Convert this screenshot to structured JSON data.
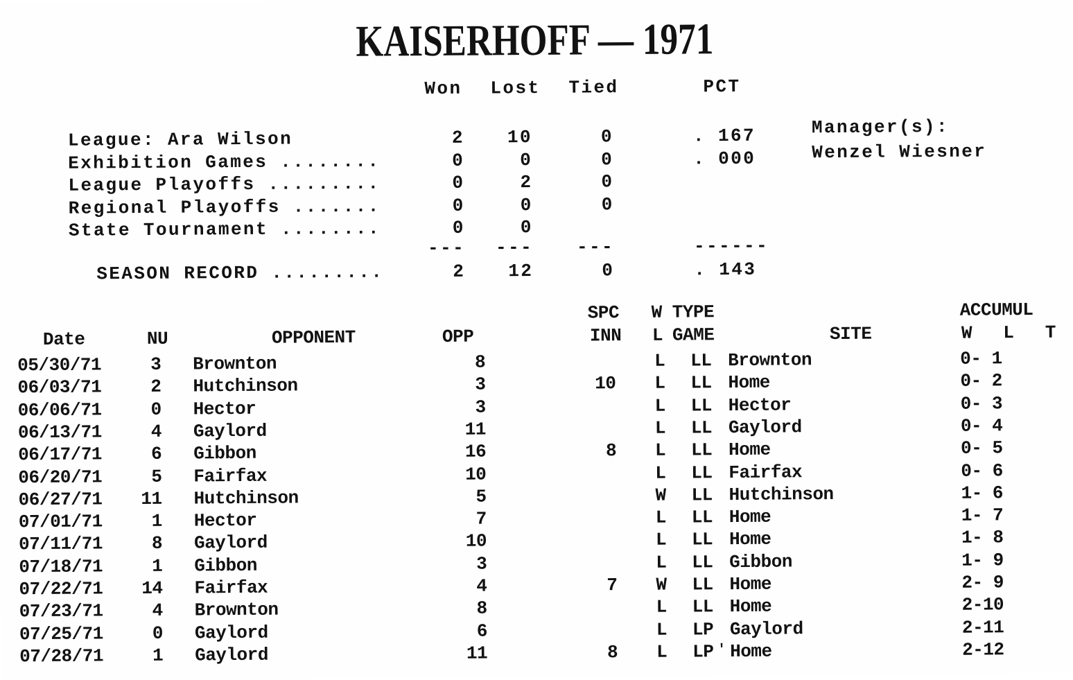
{
  "page": {
    "title": "KAISERHOFF — 1971"
  },
  "summary": {
    "header": {
      "won": "Won",
      "lost": "Lost",
      "tied": "Tied",
      "pct": "PCT"
    },
    "rows": [
      {
        "label": "League: Ara Wilson",
        "won": "2",
        "lost": "10",
        "tied": "0",
        "pct": ". 167"
      },
      {
        "label": "Exhibition Games ........",
        "won": "0",
        "lost": "0",
        "tied": "0",
        "pct": ". 000"
      },
      {
        "label": "League Playoffs .........",
        "won": "0",
        "lost": "2",
        "tied": "0",
        "pct": ""
      },
      {
        "label": "Regional Playoffs .......",
        "won": "0",
        "lost": "0",
        "tied": "0",
        "pct": ""
      },
      {
        "label": "State Tournament ........",
        "won": "0",
        "lost": "0",
        "tied": "",
        "pct": ""
      }
    ],
    "divider": {
      "won": "---",
      "lost": "---",
      "tied": "---",
      "pct": "------"
    },
    "total": {
      "label": "SEASON RECORD .........",
      "won": "2",
      "lost": "12",
      "tied": "0",
      "pct": ". 143"
    },
    "manager_label": "Manager(s):",
    "manager_name": "Wenzel Wiesner"
  },
  "games": {
    "header": {
      "date": "Date",
      "nu": "NU",
      "opponent": "OPPONENT",
      "opp": "OPP",
      "spc_line1": "SPC",
      "spc_line2": "INN",
      "w": "W",
      "l": "L",
      "type_line1": "TYPE",
      "type_line2": "GAME",
      "site": "SITE",
      "accum_line1": "ACCUMUL",
      "accum_line2": "W   L   T"
    },
    "rows": [
      {
        "date": "05/30/71",
        "nu": "3",
        "opponent": "Brownton",
        "opp": "8",
        "spc_inn": "",
        "wl": "L",
        "type": "LL",
        "mark": "",
        "site": "Brownton",
        "accum": "0- 1"
      },
      {
        "date": "06/03/71",
        "nu": "2",
        "opponent": "Hutchinson",
        "opp": "3",
        "spc_inn": "10",
        "wl": "L",
        "type": "LL",
        "mark": "",
        "site": "Home",
        "accum": "0- 2"
      },
      {
        "date": "06/06/71",
        "nu": "0",
        "opponent": "Hector",
        "opp": "3",
        "spc_inn": "",
        "wl": "L",
        "type": "LL",
        "mark": "",
        "site": "Hector",
        "accum": "0- 3"
      },
      {
        "date": "06/13/71",
        "nu": "4",
        "opponent": "Gaylord",
        "opp": "11",
        "spc_inn": "",
        "wl": "L",
        "type": "LL",
        "mark": "",
        "site": "Gaylord",
        "accum": "0- 4"
      },
      {
        "date": "06/17/71",
        "nu": "6",
        "opponent": "Gibbon",
        "opp": "16",
        "spc_inn": "8",
        "wl": "L",
        "type": "LL",
        "mark": "",
        "site": "Home",
        "accum": "0- 5"
      },
      {
        "date": "06/20/71",
        "nu": "5",
        "opponent": "Fairfax",
        "opp": "10",
        "spc_inn": "",
        "wl": "L",
        "type": "LL",
        "mark": "",
        "site": "Fairfax",
        "accum": "0- 6"
      },
      {
        "date": "06/27/71",
        "nu": "11",
        "opponent": "Hutchinson",
        "opp": "5",
        "spc_inn": "",
        "wl": "W",
        "type": "LL",
        "mark": "",
        "site": "Hutchinson",
        "accum": "1- 6"
      },
      {
        "date": "07/01/71",
        "nu": "1",
        "opponent": "Hector",
        "opp": "7",
        "spc_inn": "",
        "wl": "L",
        "type": "LL",
        "mark": "",
        "site": "Home",
        "accum": "1- 7"
      },
      {
        "date": "07/11/71",
        "nu": "8",
        "opponent": "Gaylord",
        "opp": "10",
        "spc_inn": "",
        "wl": "L",
        "type": "LL",
        "mark": "",
        "site": "Home",
        "accum": "1- 8"
      },
      {
        "date": "07/18/71",
        "nu": "1",
        "opponent": "Gibbon",
        "opp": "3",
        "spc_inn": "",
        "wl": "L",
        "type": "LL",
        "mark": "",
        "site": "Gibbon",
        "accum": "1- 9"
      },
      {
        "date": "07/22/71",
        "nu": "14",
        "opponent": "Fairfax",
        "opp": "4",
        "spc_inn": "7",
        "wl": "W",
        "type": "LL",
        "mark": "",
        "site": "Home",
        "accum": "2- 9"
      },
      {
        "date": "07/23/71",
        "nu": "4",
        "opponent": "Brownton",
        "opp": "8",
        "spc_inn": "",
        "wl": "L",
        "type": "LL",
        "mark": "",
        "site": "Home",
        "accum": "2-10"
      },
      {
        "date": "07/25/71",
        "nu": "0",
        "opponent": "Gaylord",
        "opp": "6",
        "spc_inn": "",
        "wl": "L",
        "type": "LP",
        "mark": "",
        "site": "Gaylord",
        "accum": "2-11"
      },
      {
        "date": "07/28/71",
        "nu": "1",
        "opponent": "Gaylord",
        "opp": "11",
        "spc_inn": "8",
        "wl": "L",
        "type": "LP",
        "mark": "'",
        "site": "Home",
        "accum": "2-12"
      }
    ]
  }
}
